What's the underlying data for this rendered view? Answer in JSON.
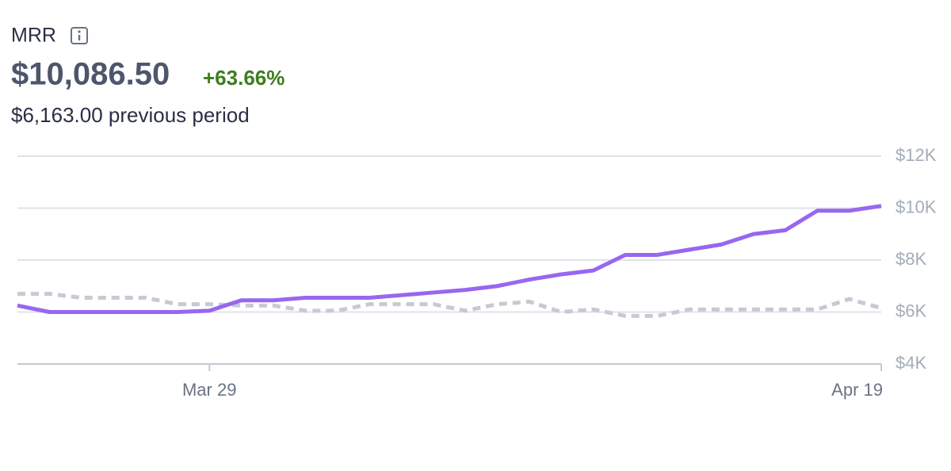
{
  "header": {
    "title": "MRR",
    "value": "$10,086.50",
    "change": "+63.66%",
    "previous": "$6,163.00 previous period"
  },
  "chart_data": {
    "type": "line",
    "categories": [
      null,
      null,
      null,
      null,
      null,
      null,
      "Mar 29",
      null,
      null,
      null,
      null,
      null,
      null,
      null,
      null,
      null,
      null,
      null,
      null,
      null,
      null,
      null,
      null,
      null,
      null,
      null,
      null,
      "Apr 19"
    ],
    "series": [
      {
        "color": "#9966f0",
        "dashed": false,
        "values": [
          6250,
          6000,
          6000,
          6000,
          6000,
          6000,
          6050,
          6450,
          6450,
          6550,
          6550,
          6550,
          6650,
          6750,
          6850,
          7000,
          7250,
          7450,
          7600,
          8200,
          8200,
          8400,
          8600,
          9000,
          9150,
          9900,
          9900,
          10086.5
        ]
      },
      {
        "color": "#c7cad3",
        "dashed": true,
        "values": [
          6700,
          6700,
          6550,
          6550,
          6550,
          6300,
          6300,
          6250,
          6250,
          6050,
          6050,
          6300,
          6300,
          6300,
          6050,
          6300,
          6400,
          6000,
          6100,
          5850,
          5850,
          6100,
          6100,
          6100,
          6100,
          6100,
          6500,
          6150
        ]
      }
    ],
    "ylim": [
      4000,
      12000
    ],
    "yticks": [
      {
        "value": 4000,
        "label": "$4K"
      },
      {
        "value": 6000,
        "label": "$6K"
      },
      {
        "value": 8000,
        "label": "$8K"
      },
      {
        "value": 10000,
        "label": "$10K"
      },
      {
        "value": 12000,
        "label": "$12K"
      }
    ],
    "grid": true
  }
}
